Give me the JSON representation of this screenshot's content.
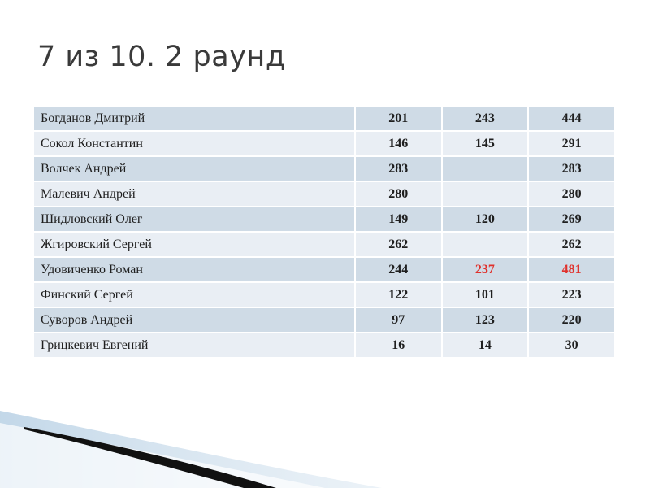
{
  "slide": {
    "title": "7 из 10. 2 раунд"
  },
  "table": {
    "rows": [
      {
        "name": "Богданов Дмитрий",
        "round1": "201",
        "round2": "243",
        "total": "444"
      },
      {
        "name": "Сокол Константин",
        "round1": "146",
        "round2": "145",
        "total": "291"
      },
      {
        "name": "Волчек Андрей",
        "round1": "283",
        "round2": "",
        "total": "283"
      },
      {
        "name": "Малевич Андрей",
        "round1": "280",
        "round2": "",
        "total": "280"
      },
      {
        "name": "Шидловский Олег",
        "round1": "149",
        "round2": "120",
        "total": "269"
      },
      {
        "name": "Жгировский Сергей",
        "round1": "262",
        "round2": "",
        "total": "262"
      },
      {
        "name": "Удовиченко Роман",
        "round1": "244",
        "round2": "237",
        "total": "481",
        "highlight": true
      },
      {
        "name": "Финский Сергей",
        "round1": "122",
        "round2": "101",
        "total": "223"
      },
      {
        "name": "Суворов Андрей",
        "round1": "97",
        "round2": "123",
        "total": "220"
      },
      {
        "name": "Грицкевич Евгений",
        "round1": "16",
        "round2": "14",
        "total": "30"
      }
    ]
  },
  "colors": {
    "row_dark": "#cfdbe6",
    "row_light": "#e9eef4",
    "highlight": "#e0302b",
    "title": "#3a3a3a"
  }
}
